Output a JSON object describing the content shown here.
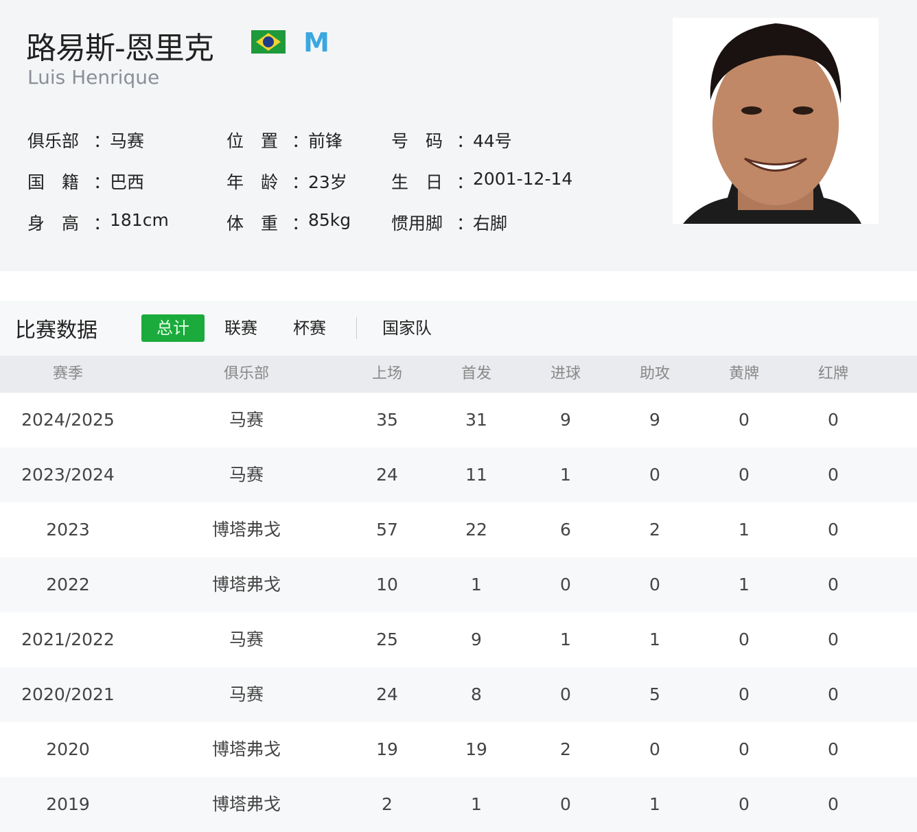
{
  "player": {
    "name_cn": "路易斯-恩里克",
    "name_en": "Luis Henrique",
    "flag_icon": "brazil-flag",
    "club_icon": "marseille-crest",
    "info": [
      [
        {
          "label": "俱乐部",
          "value": "马赛"
        },
        {
          "label": "位　置",
          "value": "前锋"
        },
        {
          "label": "号　码",
          "value": "44号"
        }
      ],
      [
        {
          "label": "国　籍",
          "value": "巴西"
        },
        {
          "label": "年　龄",
          "value": "23岁"
        },
        {
          "label": "生　日",
          "value": "2001-12-14"
        }
      ],
      [
        {
          "label": "身　高",
          "value": "181cm"
        },
        {
          "label": "体　重",
          "value": "85kg"
        },
        {
          "label": "惯用脚",
          "value": "右脚"
        }
      ]
    ]
  },
  "stats": {
    "title": "比赛数据",
    "tabs": [
      "总计",
      "联赛",
      "杯赛",
      "国家队"
    ],
    "active_tab": "总计",
    "accent": "#1aab3c",
    "columns": [
      "赛季",
      "俱乐部",
      "上场",
      "首发",
      "进球",
      "助攻",
      "黄牌",
      "红牌"
    ],
    "rows": [
      [
        "2024/2025",
        "马赛",
        "35",
        "31",
        "9",
        "9",
        "0",
        "0"
      ],
      [
        "2023/2024",
        "马赛",
        "24",
        "11",
        "1",
        "0",
        "0",
        "0"
      ],
      [
        "2023",
        "博塔弗戈",
        "57",
        "22",
        "6",
        "2",
        "1",
        "0"
      ],
      [
        "2022",
        "博塔弗戈",
        "10",
        "1",
        "0",
        "0",
        "1",
        "0"
      ],
      [
        "2021/2022",
        "马赛",
        "25",
        "9",
        "1",
        "1",
        "0",
        "0"
      ],
      [
        "2020/2021",
        "马赛",
        "24",
        "8",
        "0",
        "5",
        "0",
        "0"
      ],
      [
        "2020",
        "博塔弗戈",
        "19",
        "19",
        "2",
        "0",
        "0",
        "0"
      ],
      [
        "2019",
        "博塔弗戈",
        "2",
        "1",
        "0",
        "1",
        "0",
        "0"
      ]
    ]
  }
}
